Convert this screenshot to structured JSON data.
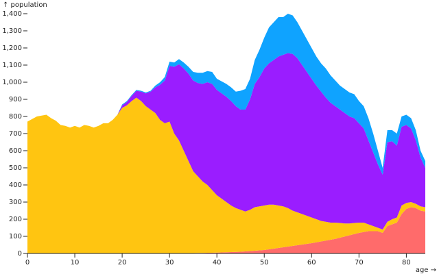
{
  "chart_data": {
    "type": "stacked-area",
    "y_label": "↑ population",
    "x_label": "age →",
    "x": [
      0,
      1,
      2,
      3,
      4,
      5,
      6,
      7,
      8,
      9,
      10,
      11,
      12,
      13,
      14,
      15,
      16,
      17,
      18,
      19,
      20,
      21,
      22,
      23,
      24,
      25,
      26,
      27,
      28,
      29,
      30,
      31,
      32,
      33,
      34,
      35,
      36,
      37,
      38,
      39,
      40,
      41,
      42,
      43,
      44,
      45,
      46,
      47,
      48,
      49,
      50,
      51,
      52,
      53,
      54,
      55,
      56,
      57,
      58,
      59,
      60,
      61,
      62,
      63,
      64,
      65,
      66,
      67,
      68,
      69,
      70,
      71,
      72,
      73,
      74,
      75,
      76,
      77,
      78,
      79,
      80,
      81,
      82,
      83,
      84
    ],
    "series": [
      {
        "color": "#ff6b6b",
        "values": [
          0,
          0,
          0,
          0,
          0,
          0,
          0,
          0,
          0,
          0,
          0,
          0,
          0,
          0,
          0,
          0,
          0,
          0,
          0,
          0,
          0,
          0,
          0,
          0,
          0,
          0,
          0,
          0,
          0,
          0,
          1,
          1,
          1,
          2,
          2,
          2,
          3,
          3,
          4,
          4,
          5,
          6,
          7,
          8,
          9,
          10,
          12,
          14,
          16,
          18,
          20,
          24,
          28,
          32,
          36,
          40,
          44,
          48,
          52,
          56,
          60,
          65,
          70,
          75,
          80,
          85,
          92,
          99,
          106,
          113,
          120,
          125,
          130,
          130,
          130,
          120,
          160,
          170,
          180,
          230,
          260,
          270,
          265,
          250,
          245
        ]
      },
      {
        "color": "#ffc511",
        "values": [
          770,
          785,
          800,
          805,
          810,
          790,
          775,
          750,
          745,
          735,
          745,
          735,
          750,
          745,
          735,
          745,
          760,
          760,
          780,
          810,
          850,
          865,
          890,
          910,
          890,
          860,
          840,
          820,
          780,
          760,
          769,
          699,
          659,
          598,
          538,
          478,
          447,
          417,
          396,
          366,
          335,
          314,
          293,
          272,
          256,
          245,
          233,
          241,
          254,
          257,
          260,
          261,
          257,
          248,
          239,
          225,
          206,
          192,
          178,
          164,
          150,
          135,
          120,
          110,
          100,
          95,
          86,
          76,
          69,
          65,
          60,
          55,
          40,
          30,
          20,
          20,
          25,
          30,
          30,
          50,
          35,
          30,
          25,
          25,
          25
        ]
      },
      {
        "color": "#9a1dff",
        "values": [
          0,
          0,
          0,
          0,
          0,
          0,
          0,
          0,
          0,
          0,
          0,
          0,
          0,
          0,
          0,
          0,
          0,
          0,
          0,
          0,
          15,
          20,
          30,
          40,
          55,
          75,
          105,
          150,
          205,
          250,
          325,
          390,
          445,
          480,
          510,
          530,
          545,
          570,
          600,
          620,
          615,
          615,
          615,
          610,
          595,
          585,
          595,
          645,
          720,
          755,
          800,
          825,
          845,
          870,
          885,
          905,
          915,
          900,
          870,
          840,
          810,
          780,
          755,
          725,
          700,
          680,
          662,
          645,
          625,
          612,
          580,
          550,
          490,
          430,
          370,
          320,
          465,
          455,
          420,
          460,
          455,
          430,
          370,
          285,
          230
        ]
      },
      {
        "color": "#0fa3ff",
        "values": [
          0,
          0,
          0,
          0,
          0,
          0,
          0,
          0,
          0,
          0,
          0,
          0,
          0,
          0,
          0,
          0,
          0,
          0,
          0,
          0,
          5,
          5,
          5,
          5,
          5,
          5,
          5,
          10,
          15,
          20,
          25,
          25,
          30,
          35,
          40,
          50,
          60,
          65,
          65,
          70,
          65,
          70,
          75,
          80,
          85,
          110,
          120,
          120,
          140,
          160,
          180,
          210,
          220,
          230,
          220,
          230,
          225,
          210,
          200,
          190,
          180,
          170,
          165,
          170,
          160,
          150,
          140,
          140,
          140,
          140,
          130,
          130,
          130,
          110,
          80,
          40,
          70,
          65,
          70,
          60,
          60,
          60,
          60,
          40,
          40
        ]
      }
    ],
    "xlim": [
      0,
      84
    ],
    "xticks": [
      0,
      10,
      20,
      30,
      40,
      50,
      60,
      70,
      80
    ],
    "ylim": [
      0,
      1400
    ],
    "yticks": [
      0,
      100,
      200,
      300,
      400,
      500,
      600,
      700,
      800,
      900,
      {
        "value": 1000,
        "label": "1,000"
      },
      {
        "value": 1100,
        "label": "1,100"
      },
      {
        "value": 1200,
        "label": "1,200"
      },
      {
        "value": 1300,
        "label": "1,300"
      },
      {
        "value": 1400,
        "label": "1,400"
      }
    ]
  }
}
